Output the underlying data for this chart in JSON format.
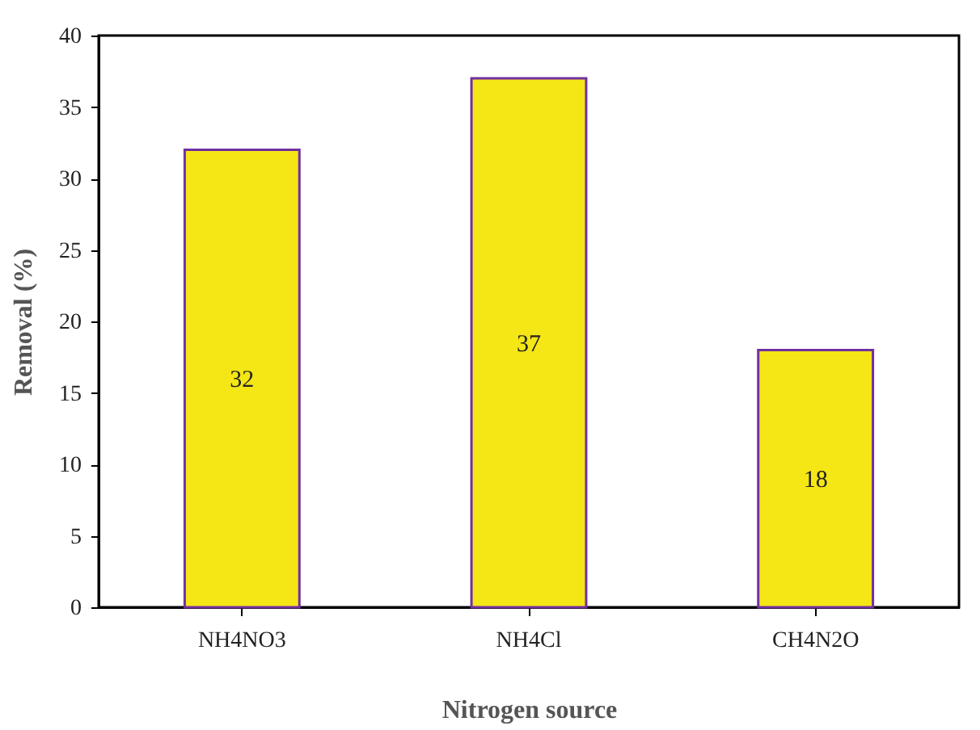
{
  "chart_data": {
    "type": "bar",
    "xlabel": "Nitrogen source",
    "ylabel": "Removal (%)",
    "categories": [
      "NH4NO3",
      "NH4Cl",
      "CH4N2O"
    ],
    "values": [
      32,
      37,
      18
    ],
    "color": "#f5e616",
    "ylim": [
      0,
      40
    ],
    "yticks": [
      0,
      5,
      10,
      15,
      20,
      25,
      30,
      35,
      40
    ],
    "data_labels": true,
    "grid": false
  }
}
